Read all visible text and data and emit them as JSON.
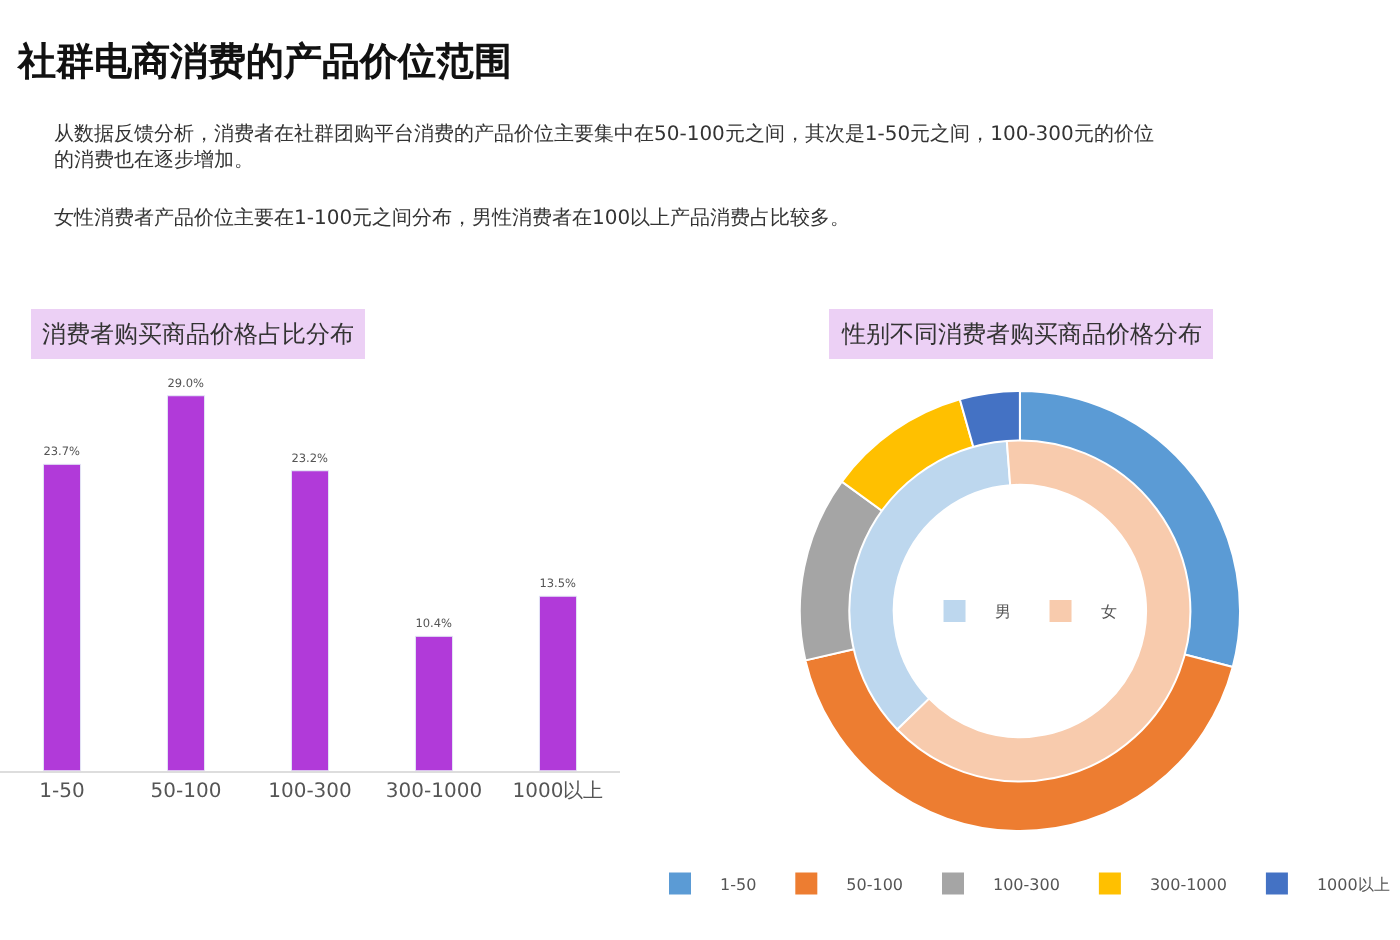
{
  "chart_data": [
    {
      "type": "other",
      "title": "社群电商消费的产品价位范围",
      "annotations": [
        "从数据反馈分析，消费者在社群团购平台消费的产品价位主要集中在50-100元之间，其次是1-50元之间，100-300元的价位的消费也在逐步增加。",
        "女性消费者产品价位主要在1-100元之间分布，男性消费者在100以上产品消费占比较多。"
      ]
    },
    {
      "type": "bar",
      "title": "消费者购买商品价格占比分布",
      "categories": [
        "1-50",
        "50-100",
        "100-300",
        "300-1000",
        "1000以上"
      ],
      "values": [
        23.7,
        29.0,
        23.2,
        10.4,
        13.5
      ],
      "value_labels": [
        "23.7%",
        "29.0%",
        "23.2%",
        "10.4%",
        "13.5%"
      ],
      "color": "#b13ad9"
    },
    {
      "type": "donut",
      "title": "性别不同消费者购买商品价格分布",
      "categories": [
        "1-50",
        "50-100",
        "100-300",
        "300-1000",
        "1000以上",
        "男",
        "女"
      ],
      "colors": [
        "#5b9bd5",
        "#ed7d31",
        "#a5a5a5",
        "#ffc000",
        "#4472c4",
        "#bdd7ee",
        "#f8cbad"
      ],
      "legend": "bottom",
      "series": [
        {
          "values": [
            29.1,
            42.3,
            13.6,
            10.6,
            4.4,
            null,
            null
          ]
        },
        {
          "values": [
            null,
            null,
            null,
            null,
            null,
            36,
            64
          ]
        }
      ]
    }
  ]
}
